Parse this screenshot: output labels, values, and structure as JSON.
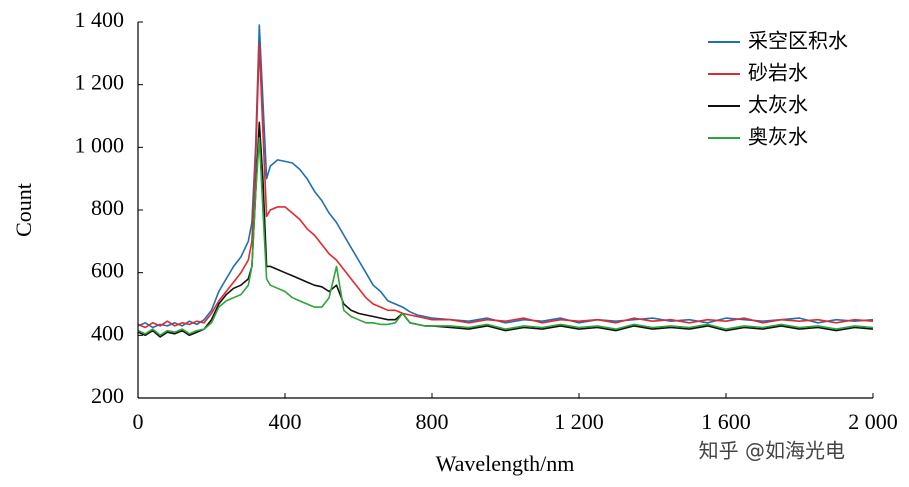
{
  "chart_data": {
    "type": "line",
    "x_label": "Wavelength/nm",
    "y_label": "Count",
    "watermark": "知乎 @如海光电",
    "xlim": [
      0,
      2000
    ],
    "ylim": [
      200,
      1400
    ],
    "xticks": [
      0,
      400,
      800,
      {
        "value": 1200,
        "label": "1 200"
      },
      {
        "value": 1600,
        "label": "1 600"
      },
      {
        "value": 2000,
        "label": "2 000"
      }
    ],
    "yticks": [
      200,
      400,
      600,
      800,
      {
        "value": 1000,
        "label": "1 000"
      },
      {
        "value": 1200,
        "label": "1 200"
      },
      {
        "value": 1400,
        "label": "1 400"
      }
    ],
    "grid": false,
    "legend": "upper right",
    "x": [
      0,
      20,
      40,
      60,
      80,
      100,
      120,
      140,
      160,
      180,
      200,
      220,
      240,
      260,
      280,
      300,
      310,
      320,
      330,
      340,
      350,
      360,
      380,
      400,
      420,
      440,
      460,
      480,
      500,
      520,
      540,
      560,
      580,
      600,
      620,
      640,
      660,
      680,
      700,
      720,
      740,
      760,
      780,
      800,
      850,
      900,
      950,
      1000,
      1050,
      1100,
      1150,
      1200,
      1250,
      1300,
      1350,
      1400,
      1450,
      1500,
      1550,
      1600,
      1650,
      1700,
      1750,
      1800,
      1850,
      1900,
      1950,
      2000
    ],
    "series": [
      {
        "name": "采空区积水",
        "color": "#1f6fb4",
        "values": [
          430,
          440,
          425,
          435,
          430,
          440,
          430,
          445,
          435,
          450,
          480,
          540,
          580,
          620,
          650,
          700,
          760,
          1000,
          1390,
          1150,
          900,
          940,
          960,
          955,
          950,
          930,
          900,
          860,
          830,
          790,
          760,
          720,
          680,
          640,
          600,
          560,
          540,
          510,
          500,
          490,
          475,
          465,
          460,
          455,
          450,
          445,
          455,
          440,
          450,
          445,
          455,
          440,
          450,
          445,
          450,
          455,
          445,
          450,
          440,
          455,
          450,
          445,
          450,
          455,
          440,
          450,
          445,
          450
        ]
      },
      {
        "name": "砂岩水",
        "color": "#e02a2f",
        "values": [
          435,
          425,
          440,
          430,
          445,
          430,
          440,
          435,
          445,
          440,
          470,
          510,
          540,
          570,
          600,
          640,
          700,
          950,
          1330,
          1050,
          780,
          800,
          810,
          810,
          790,
          770,
          740,
          720,
          690,
          660,
          640,
          610,
          580,
          550,
          520,
          500,
          490,
          480,
          480,
          470,
          465,
          460,
          455,
          450,
          450,
          440,
          450,
          445,
          455,
          440,
          450,
          445,
          450,
          440,
          455,
          445,
          450,
          440,
          450,
          445,
          455,
          440,
          450,
          445,
          450,
          440,
          450,
          445
        ]
      },
      {
        "name": "太灰水",
        "color": "#111111",
        "values": [
          410,
          400,
          415,
          395,
          410,
          405,
          415,
          400,
          410,
          420,
          450,
          500,
          530,
          550,
          560,
          580,
          620,
          850,
          1080,
          900,
          620,
          620,
          610,
          600,
          590,
          580,
          570,
          560,
          555,
          540,
          560,
          500,
          480,
          470,
          465,
          460,
          455,
          450,
          450,
          470,
          440,
          435,
          430,
          430,
          425,
          420,
          430,
          415,
          425,
          420,
          430,
          420,
          425,
          415,
          430,
          420,
          425,
          420,
          430,
          415,
          425,
          420,
          430,
          420,
          425,
          415,
          425,
          420
        ]
      },
      {
        "name": "奥灰水",
        "color": "#2ca53a",
        "values": [
          415,
          405,
          420,
          400,
          415,
          410,
          420,
          405,
          415,
          420,
          440,
          490,
          510,
          520,
          530,
          560,
          620,
          850,
          1030,
          800,
          580,
          560,
          550,
          540,
          520,
          510,
          500,
          490,
          490,
          520,
          620,
          480,
          460,
          450,
          440,
          440,
          435,
          435,
          440,
          470,
          440,
          435,
          430,
          430,
          430,
          425,
          435,
          420,
          430,
          425,
          435,
          425,
          430,
          420,
          435,
          425,
          430,
          425,
          435,
          420,
          430,
          425,
          435,
          425,
          430,
          420,
          430,
          425
        ]
      }
    ]
  }
}
